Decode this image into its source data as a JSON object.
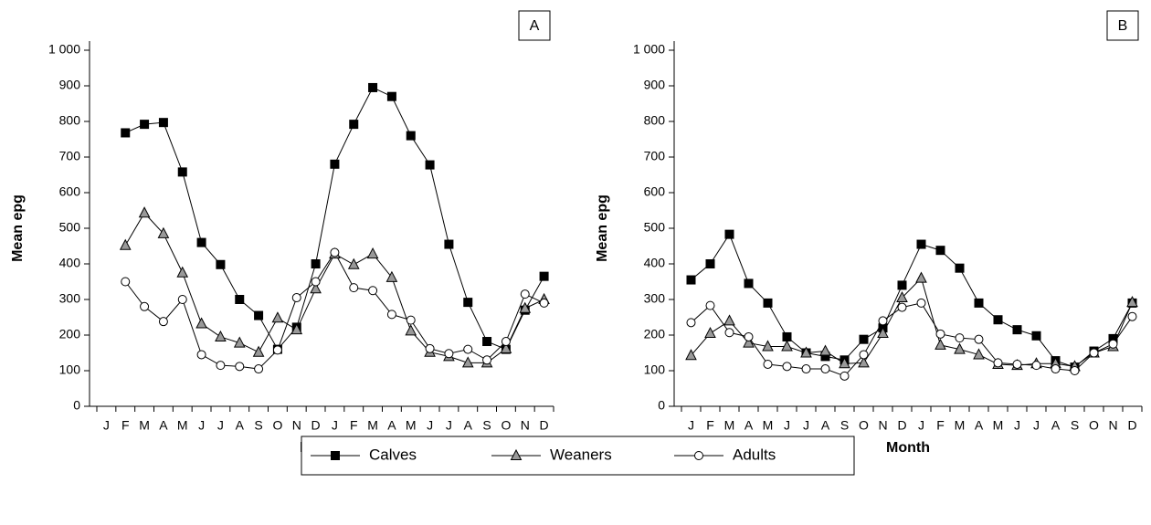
{
  "chart_data": [
    {
      "type": "line",
      "panel_label": "A",
      "x_label": "Month",
      "y_label": "Mean epg",
      "categories": [
        "J",
        "F",
        "M",
        "A",
        "M",
        "J",
        "J",
        "A",
        "S",
        "O",
        "N",
        "D",
        "J",
        "F",
        "M",
        "A",
        "M",
        "J",
        "J",
        "A",
        "S",
        "O",
        "N",
        "D"
      ],
      "ylim": [
        0,
        1000
      ],
      "yticks": [
        0,
        100,
        200,
        300,
        400,
        500,
        600,
        700,
        800,
        900,
        {
          "value": 1000,
          "label": "1 000"
        }
      ],
      "series": [
        {
          "name": "Calves",
          "color": "#000000",
          "marker": "square",
          "values": [
            null,
            768,
            792,
            797,
            658,
            460,
            398,
            300,
            255,
            160,
            222,
            400,
            680,
            792,
            895,
            870,
            760,
            678,
            455,
            292,
            182,
            160,
            270,
            365
          ]
        },
        {
          "name": "Weaners",
          "color": "#999999",
          "marker": "triangle",
          "values": [
            null,
            452,
            543,
            485,
            375,
            232,
            195,
            178,
            152,
            248,
            215,
            330,
            428,
            398,
            428,
            362,
            212,
            152,
            140,
            122,
            122,
            162,
            275,
            300
          ]
        },
        {
          "name": "Adults",
          "color": "#ffffff",
          "marker": "circle",
          "values": [
            null,
            350,
            280,
            238,
            300,
            145,
            115,
            112,
            105,
            158,
            305,
            350,
            432,
            333,
            325,
            258,
            242,
            162,
            148,
            160,
            130,
            182,
            315,
            290
          ]
        }
      ]
    },
    {
      "type": "line",
      "panel_label": "B",
      "x_label": "Month",
      "y_label": "Mean epg",
      "categories": [
        "J",
        "F",
        "M",
        "A",
        "M",
        "J",
        "J",
        "A",
        "S",
        "O",
        "N",
        "D",
        "J",
        "F",
        "M",
        "A",
        "M",
        "J",
        "J",
        "A",
        "S",
        "O",
        "N",
        "D"
      ],
      "ylim": [
        0,
        1000
      ],
      "yticks": [
        0,
        100,
        200,
        300,
        400,
        500,
        600,
        700,
        800,
        900,
        {
          "value": 1000,
          "label": "1 000"
        }
      ],
      "series": [
        {
          "name": "Calves",
          "color": "#000000",
          "marker": "square",
          "values": [
            355,
            400,
            483,
            345,
            290,
            195,
            150,
            140,
            130,
            188,
            220,
            340,
            455,
            438,
            388,
            290,
            243,
            215,
            198,
            128,
            110,
            155,
            190,
            290
          ]
        },
        {
          "name": "Weaners",
          "color": "#999999",
          "marker": "triangle",
          "values": [
            143,
            205,
            240,
            178,
            168,
            168,
            150,
            155,
            120,
            122,
            205,
            305,
            360,
            172,
            160,
            145,
            118,
            115,
            120,
            120,
            112,
            150,
            168,
            292
          ]
        },
        {
          "name": "Adults",
          "color": "#ffffff",
          "marker": "circle",
          "values": [
            235,
            283,
            207,
            195,
            118,
            112,
            105,
            105,
            85,
            145,
            240,
            278,
            290,
            203,
            192,
            188,
            122,
            118,
            115,
            105,
            100,
            150,
            175,
            252
          ]
        }
      ]
    }
  ]
}
